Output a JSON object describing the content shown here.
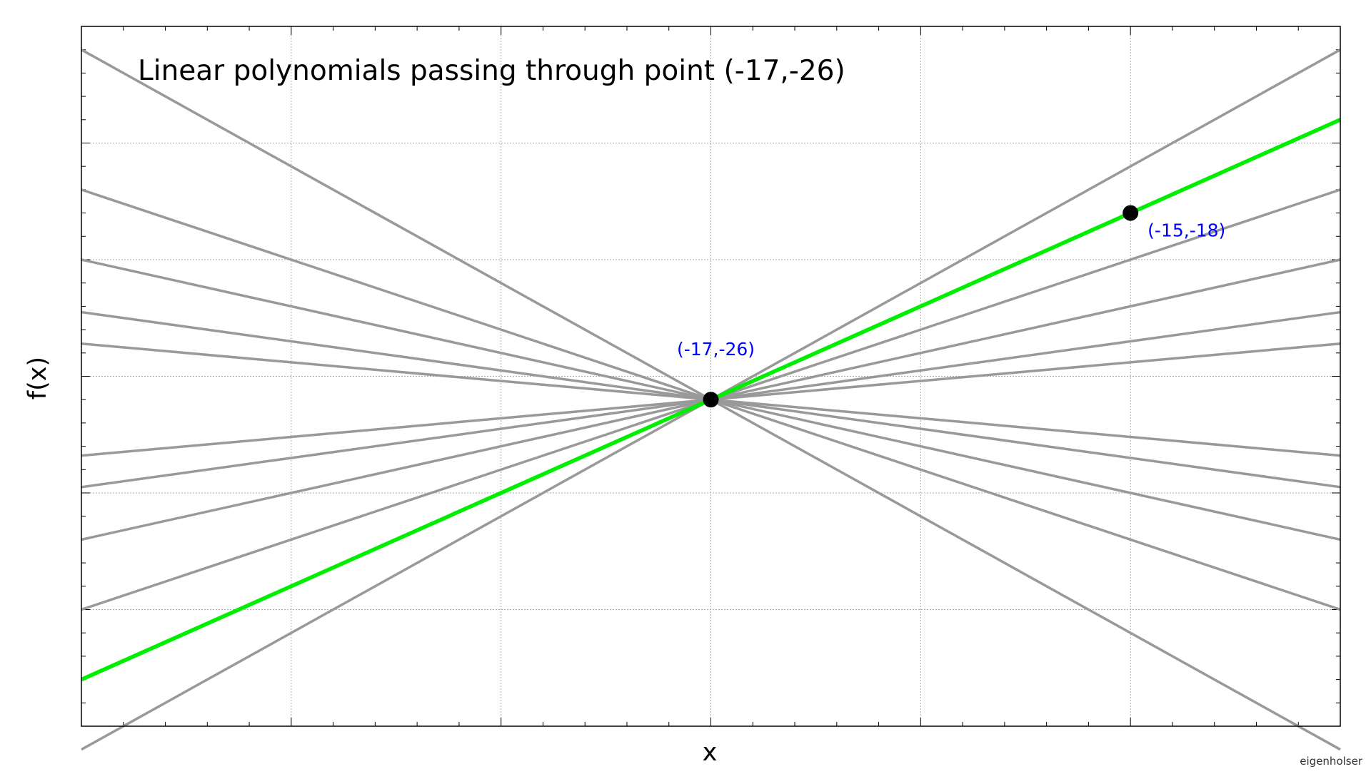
{
  "chart_data": {
    "type": "line",
    "title": "Linear polynomials passing through point (-17,-26)",
    "xlabel": "x",
    "ylabel": "f(x)",
    "credit": "eigenholser",
    "xlim": [
      -20,
      -14
    ],
    "ylim": [
      -40,
      -10
    ],
    "grid": true,
    "x_major_ticks": [
      -19,
      -18,
      -17,
      -16,
      -15
    ],
    "x_minor_step": 0.2,
    "y_major_ticks": [
      -35,
      -30,
      -25,
      -20,
      -15
    ],
    "y_minor_step": 1,
    "tick_labels_shown": false,
    "pivot": {
      "x": -17,
      "y": -26
    },
    "gray_line_slopes": [
      -5,
      -3,
      -2,
      -1.25,
      -0.8,
      0.8,
      1.25,
      2,
      3,
      5
    ],
    "gray_line_color": "#999999",
    "highlight_line": {
      "slope": 4,
      "intercept": 42,
      "color": "#00ee00"
    },
    "points": [
      {
        "x": -17,
        "y": -26,
        "label": "(-17,-26)",
        "label_position": "above"
      },
      {
        "x": -15,
        "y": -18,
        "label": "(-15,-18)",
        "label_position": "below-right"
      }
    ],
    "point_color": "#000000",
    "annotation_color": "#0000ff"
  }
}
